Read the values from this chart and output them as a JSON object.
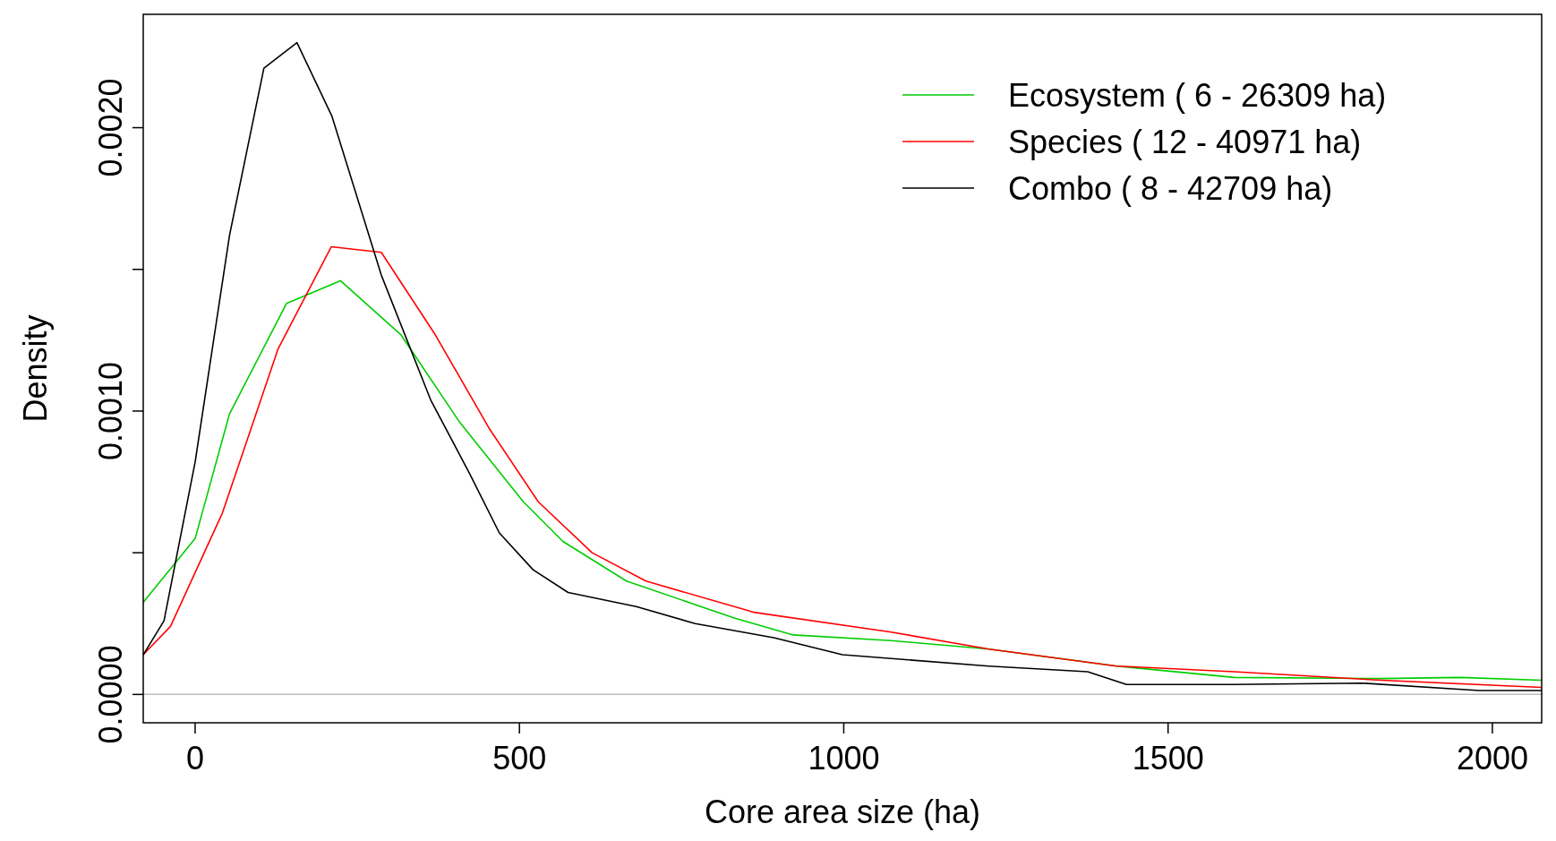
{
  "chart_data": {
    "type": "line",
    "xlabel": "Core area size (ha)",
    "ylabel": "Density",
    "xlim": [
      -80,
      2076
    ],
    "xticks": [
      0,
      500,
      1000,
      1500,
      2000
    ],
    "ylim": [
      -0.0001,
      0.0024
    ],
    "yticks": [
      {
        "value": 0,
        "label": "0.0000"
      },
      {
        "value": 0.0005,
        "label": null
      },
      {
        "value": 0.001,
        "label": "0.0010"
      },
      {
        "value": 0.0015,
        "label": null
      },
      {
        "value": 0.002,
        "label": "0.0020"
      }
    ],
    "legend": "top right",
    "grid": false,
    "marker": "none",
    "line_style": "solid",
    "ref_lines": [
      {
        "axis": "y",
        "value": 0,
        "color": "#bebebe"
      }
    ],
    "series": [
      {
        "name": "Ecosystem ( 6 - 26309  ha)",
        "color": "#00cd00",
        "x": [
          -80,
          0,
          53,
          141,
          224,
          317,
          408,
          506,
          567,
          665,
          831,
          922,
          1073,
          1224,
          1421,
          1602,
          1829,
          1950,
          2076
        ],
        "values": [
          0.000325,
          0.00055,
          0.00099,
          0.00138,
          0.00146,
          0.00127,
          0.00096,
          0.00068,
          0.00054,
          0.0004,
          0.00027,
          0.00021,
          0.00019,
          0.00016,
          0.0001,
          6e-05,
          5.6e-05,
          6e-05,
          5e-05
        ]
      },
      {
        "name": "Species ( 12 - 40971  ha)",
        "color": "#ff0000",
        "x": [
          -80,
          -38,
          42,
          128,
          210,
          287,
          370,
          453,
          529,
          612,
          695,
          861,
          1073,
          1224,
          1421,
          1602,
          1829,
          2076
        ],
        "values": [
          0.00014,
          0.00024,
          0.00064,
          0.00122,
          0.00158,
          0.00156,
          0.00127,
          0.00094,
          0.00068,
          0.0005,
          0.0004,
          0.00029,
          0.00022,
          0.00016,
          0.0001,
          8e-05,
          5e-05,
          2.5e-05
        ]
      },
      {
        "name": "Combo ( 8 - 42709  ha)",
        "color": "#000000",
        "x": [
          -80,
          -48,
          0,
          53,
          106,
          157,
          211,
          287,
          363,
          423,
          469,
          521,
          575,
          680,
          771,
          892,
          998,
          1224,
          1376,
          1436,
          1602,
          1799,
          1980,
          2076
        ],
        "values": [
          0.00014,
          0.00026,
          0.00082,
          0.00162,
          0.00221,
          0.0023,
          0.00204,
          0.00148,
          0.00104,
          0.00078,
          0.00057,
          0.00044,
          0.00036,
          0.00031,
          0.00025,
          0.0002,
          0.00014,
          0.0001,
          8e-05,
          3.5e-05,
          3.5e-05,
          4e-05,
          1.4e-05,
          1.4e-05
        ]
      }
    ]
  }
}
